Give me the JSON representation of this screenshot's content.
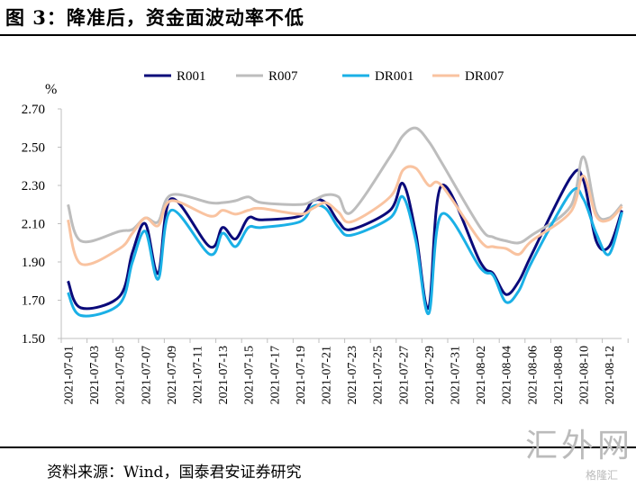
{
  "title": "图 3：降准后，资金面波动率不低",
  "source": "资料来源：Wind，国泰君安证券研究",
  "watermark": {
    "main": "汇外网",
    "sub": "格隆汇"
  },
  "chart_data": {
    "type": "line",
    "title": "图 3：降准后，资金面波动率不低",
    "ylabel": "%",
    "xlabel": "",
    "ylim": [
      1.5,
      2.7
    ],
    "yticks": [
      "1.50",
      "1.70",
      "1.90",
      "2.10",
      "2.30",
      "2.50",
      "2.70"
    ],
    "xtick_labels": [
      "2021-07-01",
      "2021-07-03",
      "2021-07-05",
      "2021-07-07",
      "2021-07-09",
      "2021-07-11",
      "2021-07-13",
      "2021-07-15",
      "2021-07-17",
      "2021-07-19",
      "2021-07-21",
      "2021-07-23",
      "2021-07-25",
      "2021-07-27",
      "2021-07-29",
      "2021-07-31",
      "2021-08-02",
      "2021-08-04",
      "2021-08-06",
      "2021-08-08",
      "2021-08-10",
      "2021-08-12"
    ],
    "x_day_range": [
      0,
      43
    ],
    "legend_position": "top",
    "x": [
      "2021-07-01",
      "2021-07-02",
      "2021-07-05",
      "2021-07-06",
      "2021-07-07",
      "2021-07-08",
      "2021-07-09",
      "2021-07-12",
      "2021-07-13",
      "2021-07-14",
      "2021-07-15",
      "2021-07-16",
      "2021-07-19",
      "2021-07-20",
      "2021-07-21",
      "2021-07-22",
      "2021-07-23",
      "2021-07-26",
      "2021-07-27",
      "2021-07-28",
      "2021-07-29",
      "2021-07-30",
      "2021-08-02",
      "2021-08-03",
      "2021-08-04",
      "2021-08-05",
      "2021-08-06",
      "2021-08-09",
      "2021-08-10",
      "2021-08-11",
      "2021-08-12",
      "2021-08-13"
    ],
    "x_day_index": [
      0,
      1,
      4,
      5,
      6,
      7,
      8,
      11,
      12,
      13,
      14,
      15,
      18,
      19,
      20,
      21,
      22,
      25,
      26,
      27,
      28,
      29,
      32,
      33,
      34,
      35,
      36,
      39,
      40,
      41,
      42,
      43
    ],
    "series": [
      {
        "name": "R001",
        "color": "#0a0a7a",
        "values": [
          1.8,
          1.66,
          1.72,
          1.95,
          2.1,
          1.84,
          2.23,
          1.98,
          2.08,
          2.02,
          2.13,
          2.12,
          2.14,
          2.22,
          2.21,
          2.11,
          2.07,
          2.17,
          2.31,
          2.05,
          1.66,
          2.3,
          1.9,
          1.84,
          1.73,
          1.8,
          1.94,
          2.34,
          2.33,
          2.01,
          1.98,
          2.17
        ]
      },
      {
        "name": "R007",
        "color": "#bdbdbd",
        "values": [
          2.2,
          2.01,
          2.06,
          2.07,
          2.13,
          2.11,
          2.25,
          2.21,
          2.21,
          2.22,
          2.24,
          2.21,
          2.2,
          2.22,
          2.25,
          2.24,
          2.16,
          2.45,
          2.56,
          2.6,
          2.53,
          2.42,
          2.08,
          2.03,
          2.01,
          2.0,
          2.04,
          2.19,
          2.45,
          2.16,
          2.13,
          2.2
        ]
      },
      {
        "name": "DR001",
        "color": "#1ab0e6",
        "values": [
          1.74,
          1.62,
          1.68,
          1.9,
          2.06,
          1.81,
          2.17,
          1.94,
          2.05,
          1.98,
          2.08,
          2.08,
          2.11,
          2.19,
          2.18,
          2.08,
          2.04,
          2.13,
          2.24,
          2.01,
          1.63,
          2.15,
          1.87,
          1.83,
          1.69,
          1.75,
          1.9,
          2.26,
          2.23,
          2.05,
          1.94,
          2.16
        ]
      },
      {
        "name": "DR007",
        "color": "#f9c3a0",
        "values": [
          2.12,
          1.89,
          1.97,
          2.05,
          2.13,
          2.09,
          2.22,
          2.14,
          2.17,
          2.15,
          2.17,
          2.18,
          2.15,
          2.18,
          2.21,
          2.16,
          2.11,
          2.24,
          2.38,
          2.39,
          2.3,
          2.3,
          2.01,
          1.98,
          1.97,
          1.94,
          2.01,
          2.16,
          2.35,
          2.14,
          2.12,
          2.19
        ]
      }
    ]
  }
}
